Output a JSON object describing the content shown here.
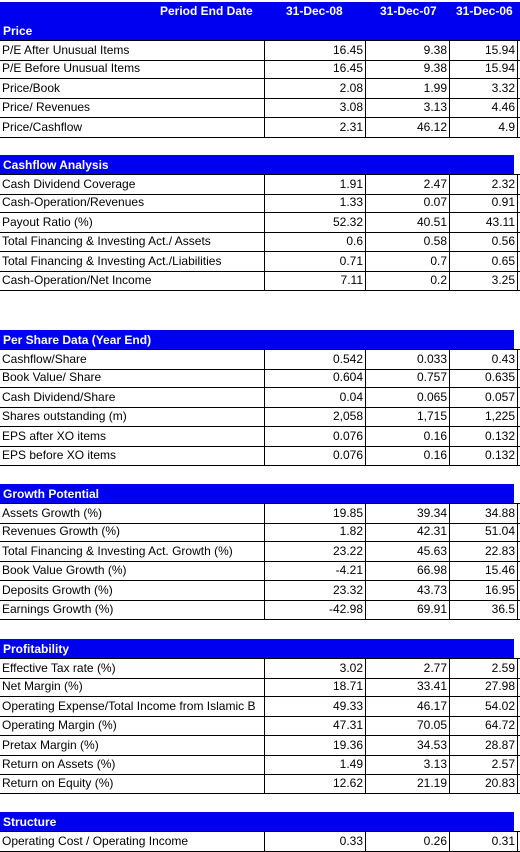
{
  "header": {
    "label": "Period End Date",
    "col1": "31-Dec-08",
    "col2": "31-Dec-07",
    "col3": "31-Dec-06"
  },
  "sections": [
    {
      "title": "Price",
      "rows": [
        {
          "label": "P/E After Unusual Items",
          "v1": "16.45",
          "v2": "9.38",
          "v3": "15.94"
        },
        {
          "label": "P/E Before Unusual Items",
          "v1": "16.45",
          "v2": "9.38",
          "v3": "15.94"
        },
        {
          "label": "Price/Book",
          "v1": "2.08",
          "v2": "1.99",
          "v3": "3.32"
        },
        {
          "label": "Price/ Revenues",
          "v1": "3.08",
          "v2": "3.13",
          "v3": "4.46"
        },
        {
          "label": "Price/Cashflow",
          "v1": "2.31",
          "v2": "46.12",
          "v3": "4.9"
        }
      ]
    },
    {
      "title": "Cashflow Analysis",
      "rows": [
        {
          "label": "Cash Dividend Coverage",
          "v1": "1.91",
          "v2": "2.47",
          "v3": "2.32"
        },
        {
          "label": "Cash-Operation/Revenues",
          "v1": "1.33",
          "v2": "0.07",
          "v3": "0.91"
        },
        {
          "label": "Payout Ratio (%)",
          "v1": "52.32",
          "v2": "40.51",
          "v3": "43.11"
        },
        {
          "label": "Total Financing & Investing Act./ Assets",
          "v1": "0.6",
          "v2": "0.58",
          "v3": "0.56"
        },
        {
          "label": "Total Financing & Investing Act./Liabilities",
          "v1": "0.71",
          "v2": "0.7",
          "v3": "0.65"
        },
        {
          "label": "Cash-Operation/Net Income",
          "v1": "7.11",
          "v2": "0.2",
          "v3": "3.25"
        }
      ]
    },
    {
      "title": "Per Share Data (Year End)",
      "rows": [
        {
          "label": "Cashflow/Share",
          "v1": "0.542",
          "v2": "0.033",
          "v3": "0.43"
        },
        {
          "label": "Book Value/ Share",
          "v1": "0.604",
          "v2": "0.757",
          "v3": "0.635"
        },
        {
          "label": "Cash Dividend/Share",
          "v1": "0.04",
          "v2": "0.065",
          "v3": "0.057"
        },
        {
          "label": "Shares outstanding (m)",
          "v1": "2,058",
          "v2": "1,715",
          "v3": "1,225"
        },
        {
          "label": "EPS after XO items",
          "v1": "0.076",
          "v2": "0.16",
          "v3": "0.132"
        },
        {
          "label": "EPS before XO items",
          "v1": "0.076",
          "v2": "0.16",
          "v3": "0.132"
        }
      ]
    },
    {
      "title": "Growth Potential",
      "rows": [
        {
          "label": "Assets Growth (%)",
          "v1": "19.85",
          "v2": "39.34",
          "v3": "34.88"
        },
        {
          "label": "Revenues Growth (%)",
          "v1": "1.82",
          "v2": "42.31",
          "v3": "51.04"
        },
        {
          "label": "Total Financing & Investing Act. Growth (%)",
          "v1": "23.22",
          "v2": "45.63",
          "v3": "22.83"
        },
        {
          "label": "Book Value Growth (%)",
          "v1": "-4.21",
          "v2": "66.98",
          "v3": "15.46"
        },
        {
          "label": "Deposits Growth (%)",
          "v1": "23.32",
          "v2": "43.73",
          "v3": "16.95"
        },
        {
          "label": "Earnings Growth (%)",
          "v1": "-42.98",
          "v2": "69.91",
          "v3": "36.5"
        }
      ]
    },
    {
      "title": "Profitability",
      "rows": [
        {
          "label": "Effective Tax rate (%)",
          "v1": "3.02",
          "v2": "2.77",
          "v3": "2.59"
        },
        {
          "label": "Net Margin (%)",
          "v1": "18.71",
          "v2": "33.41",
          "v3": "27.98"
        },
        {
          "label": "Operating Expense/Total Income from Islamic B",
          "v1": "49.33",
          "v2": "46.17",
          "v3": "54.02"
        },
        {
          "label": "Operating Margin (%)",
          "v1": "47.31",
          "v2": "70.05",
          "v3": "64.72"
        },
        {
          "label": "Pretax Margin (%)",
          "v1": "19.36",
          "v2": "34.53",
          "v3": "28.87"
        },
        {
          "label": "Return on Assets (%)",
          "v1": "1.49",
          "v2": "3.13",
          "v3": "2.57"
        },
        {
          "label": "Return on Equity (%)",
          "v1": "12.62",
          "v2": "21.19",
          "v3": "20.83"
        }
      ]
    },
    {
      "title": "Structure",
      "rows": [
        {
          "label": "Operating Cost / Operating Income",
          "v1": "0.33",
          "v2": "0.26",
          "v3": "0.31"
        }
      ]
    }
  ]
}
